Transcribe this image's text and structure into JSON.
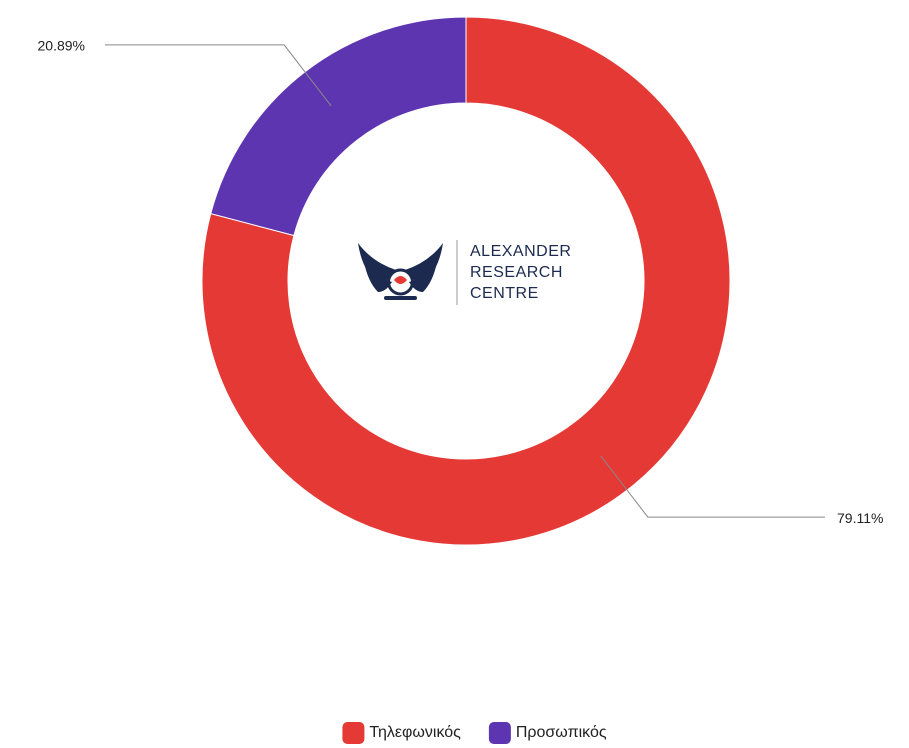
{
  "chart_data": {
    "type": "donut",
    "series": [
      {
        "name": "Τηλεφωνικός",
        "color": "#e53935",
        "values": [
          79.11
        ],
        "value_labels": [
          "79.11%"
        ]
      },
      {
        "name": "Προσωπικός",
        "color": "#5e35b1",
        "values": [
          20.89
        ],
        "value_labels": [
          "20.89%"
        ]
      }
    ],
    "center_text": [
      "ALEXANDER",
      "RESEARCH",
      "CENTRE"
    ],
    "legend": "bottom"
  }
}
